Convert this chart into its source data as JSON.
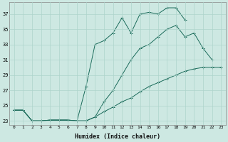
{
  "xlabel": "Humidex (Indice chaleur)",
  "ylabel": "",
  "bg_color": "#cde8e2",
  "grid_color": "#aed4cc",
  "line_color": "#1a6b5a",
  "xlim": [
    -0.5,
    23.5
  ],
  "ylim": [
    22.5,
    38.5
  ],
  "xticks": [
    0,
    1,
    2,
    3,
    4,
    5,
    6,
    7,
    8,
    9,
    10,
    11,
    12,
    13,
    14,
    15,
    16,
    17,
    18,
    19,
    20,
    21,
    22,
    23
  ],
  "yticks": [
    23,
    25,
    27,
    29,
    31,
    33,
    35,
    37
  ],
  "line1_x": [
    0,
    1,
    2,
    3,
    4,
    5,
    6,
    7,
    8,
    9,
    10,
    11,
    12,
    13,
    14,
    15,
    16,
    17,
    18,
    19,
    20,
    21,
    22,
    23
  ],
  "line1_y": [
    24.4,
    24.4,
    23.0,
    23.0,
    23.1,
    23.1,
    23.1,
    23.0,
    27.5,
    33.0,
    33.5,
    34.5,
    36.5,
    34.5,
    37.0,
    37.2,
    37.0,
    37.8,
    37.8,
    36.2,
    null,
    null,
    null,
    null
  ],
  "line2_x": [
    0,
    1,
    2,
    3,
    4,
    5,
    6,
    7,
    8,
    9,
    10,
    11,
    12,
    13,
    14,
    15,
    16,
    17,
    18,
    19,
    20,
    21,
    22,
    23
  ],
  "line2_y": [
    24.4,
    24.4,
    23.0,
    23.0,
    23.1,
    23.1,
    23.1,
    23.0,
    23.0,
    23.5,
    25.5,
    27.0,
    29.0,
    31.0,
    32.5,
    33.0,
    34.0,
    35.0,
    35.5,
    34.0,
    34.5,
    32.5,
    31.0,
    null
  ],
  "line3_x": [
    0,
    1,
    2,
    3,
    4,
    5,
    6,
    7,
    8,
    9,
    10,
    11,
    12,
    13,
    14,
    15,
    16,
    17,
    18,
    19,
    20,
    21,
    22,
    23
  ],
  "line3_y": [
    24.4,
    24.4,
    23.0,
    23.0,
    23.1,
    23.1,
    23.1,
    23.0,
    23.0,
    23.5,
    24.2,
    24.8,
    25.5,
    26.0,
    26.8,
    27.5,
    28.0,
    28.5,
    29.0,
    29.5,
    29.8,
    30.0,
    30.0,
    30.0
  ]
}
